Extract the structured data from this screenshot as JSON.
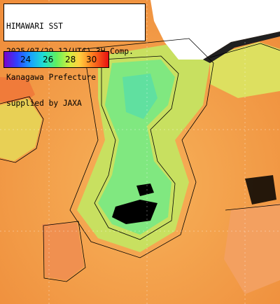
{
  "title": {
    "line1": "HIMAWARI SST",
    "line2": "2025/07/29 12(UTC) 3H Comp.",
    "line3": "Kanagawa Prefecture",
    "line4": "supplied by JAXA"
  },
  "legend": {
    "labels": [
      "24",
      "26",
      "28",
      "30"
    ]
  },
  "colors": {
    "land": "#ffffff",
    "coast_shade": "#202020",
    "sea_warm": "#f4a04a",
    "sea_mid": "#c8e060",
    "sea_cool": "#80e880",
    "no_data": "#000000",
    "grid": "#ffffff"
  }
}
